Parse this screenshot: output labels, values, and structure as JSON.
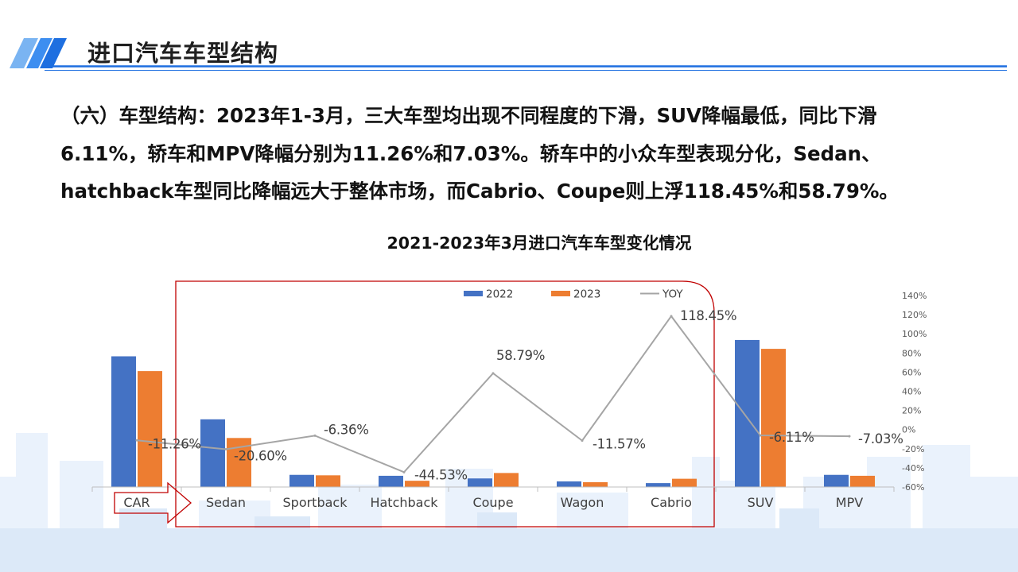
{
  "page": {
    "title": "进口汽车车型结构",
    "paragraph_lines": [
      "（六）车型结构：2023年1-3月，三大车型均出现不同程度的下滑，SUV降幅最低，同比下滑",
      "6.11%，轿车和MPV降幅分别为11.26%和7.03%。轿车中的小众车型表现分化，Sedan、",
      "hatchback车型同比降幅远大于整体市场，而Cabrio、Coupe则上浮118.45%和58.79%。"
    ],
    "accent_color": "#1e6fe0"
  },
  "chart_data": {
    "type": "bar",
    "title": "2021-2023年3月进口汽车车型变化情况",
    "categories": [
      "CAR",
      "Sedan",
      "Sportback",
      "Hatchback",
      "Coupe",
      "Wagon",
      "Cabrio",
      "SUV",
      "MPV"
    ],
    "series": [
      {
        "name": "2022",
        "type": "bar",
        "axis": "left",
        "color": "#4472c4",
        "values": [
          8.4,
          4.35,
          0.78,
          0.72,
          0.55,
          0.36,
          0.25,
          9.45,
          0.78
        ]
      },
      {
        "name": "2023",
        "type": "bar",
        "axis": "left",
        "color": "#ed7d31",
        "values": [
          7.45,
          3.15,
          0.75,
          0.4,
          0.9,
          0.31,
          0.53,
          8.88,
          0.72
        ]
      },
      {
        "name": "YOY",
        "type": "line",
        "axis": "right",
        "color": "#a5a5a5",
        "values": [
          -11.26,
          -20.6,
          -6.36,
          -44.53,
          58.79,
          -11.57,
          118.45,
          -6.11,
          -7.03
        ],
        "labels": [
          "-11.26%",
          "-20.60%",
          "-6.36%",
          "-44.53%",
          "58.79%",
          "-11.57%",
          "118.45%",
          "-6.11%",
          "-7.03%"
        ]
      }
    ],
    "left_ylim": [
      0,
      12
    ],
    "right_ylim": [
      -60,
      140
    ],
    "right_ticks": [
      "140%",
      "120%",
      "100%",
      "80%",
      "60%",
      "40%",
      "20%",
      "0%",
      "-20%",
      "-40%",
      "-60%"
    ],
    "legend": [
      "2022",
      "2023",
      "YOY"
    ],
    "legend_position": "top",
    "grid": false,
    "highlight_box": {
      "from_category": "Sedan",
      "to_category": "Cabrio",
      "color": "#c00000"
    },
    "callout_arrow": {
      "category": "CAR",
      "color": "#c00000"
    }
  }
}
